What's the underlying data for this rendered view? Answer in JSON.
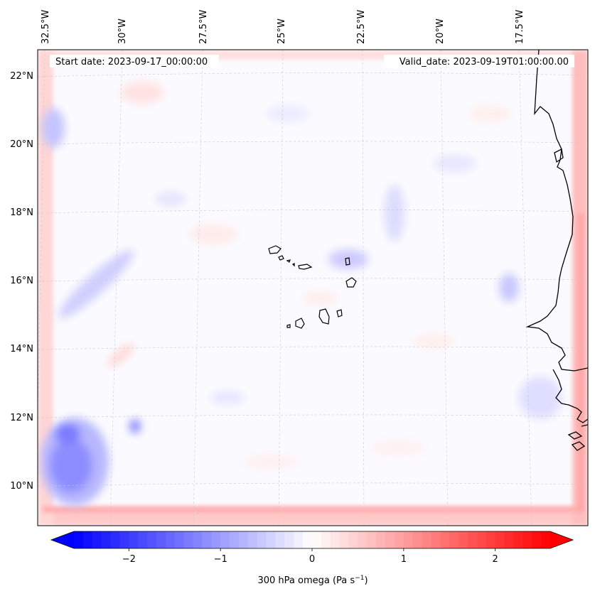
{
  "title_left_label": "Start date: 2023-09-17_00:00:00",
  "title_right_label": "Valid_date: 2023-09-19T01:00:00.00",
  "map": {
    "lon_ticks": [
      "32.5°W",
      "30°W",
      "27.5°W",
      "25°W",
      "22.5°W",
      "20°W",
      "17.5°W"
    ],
    "lat_ticks": [
      "22°N",
      "20°N",
      "18°N",
      "16°N",
      "14°N",
      "12°N",
      "10°N"
    ],
    "gridlines": true,
    "projection": "rotated",
    "variable": "300 hPa omega"
  },
  "colorbar": {
    "label_main": "300 hPa omega (Pa s",
    "label_sup": "−1",
    "label_close": ")",
    "ticks": [
      "−2",
      "−1",
      "0",
      "1",
      "2"
    ],
    "tick_values": [
      -2,
      -1,
      0,
      1,
      2
    ],
    "range": [
      -2.6,
      2.6
    ],
    "levels": 52,
    "extend": "both",
    "cmap": "bwr",
    "color_min": "#0000ff",
    "color_mid": "#ffffff",
    "color_max": "#ff0000"
  },
  "chart_data": {
    "type": "heatmap",
    "title": "",
    "xlabel": "",
    "ylabel": "",
    "colorbar_label": "300 hPa omega (Pa s−1)",
    "color_range": [
      -2.6,
      2.6
    ],
    "field_features": [
      {
        "region": "lateral boundary (all edges)",
        "sign": "positive",
        "approx_value": 1.0
      },
      {
        "region": "southwest near 31°W 10.5°N",
        "sign": "negative",
        "approx_value": -1.4
      },
      {
        "region": "west near 32°W 21°N",
        "sign": "negative",
        "approx_value": -0.8
      },
      {
        "region": "band from 32°W 14.5°N to 29°W 16°N",
        "sign": "negative",
        "approx_value": -0.6
      },
      {
        "region": "near 22°W 16.5°N",
        "sign": "negative",
        "approx_value": -0.5
      },
      {
        "region": "near 29.5°W 11.5°N",
        "sign": "negative",
        "approx_value": -0.9
      },
      {
        "region": "near 17.5°W 15.3°N",
        "sign": "negative",
        "approx_value": -0.5
      }
    ]
  }
}
